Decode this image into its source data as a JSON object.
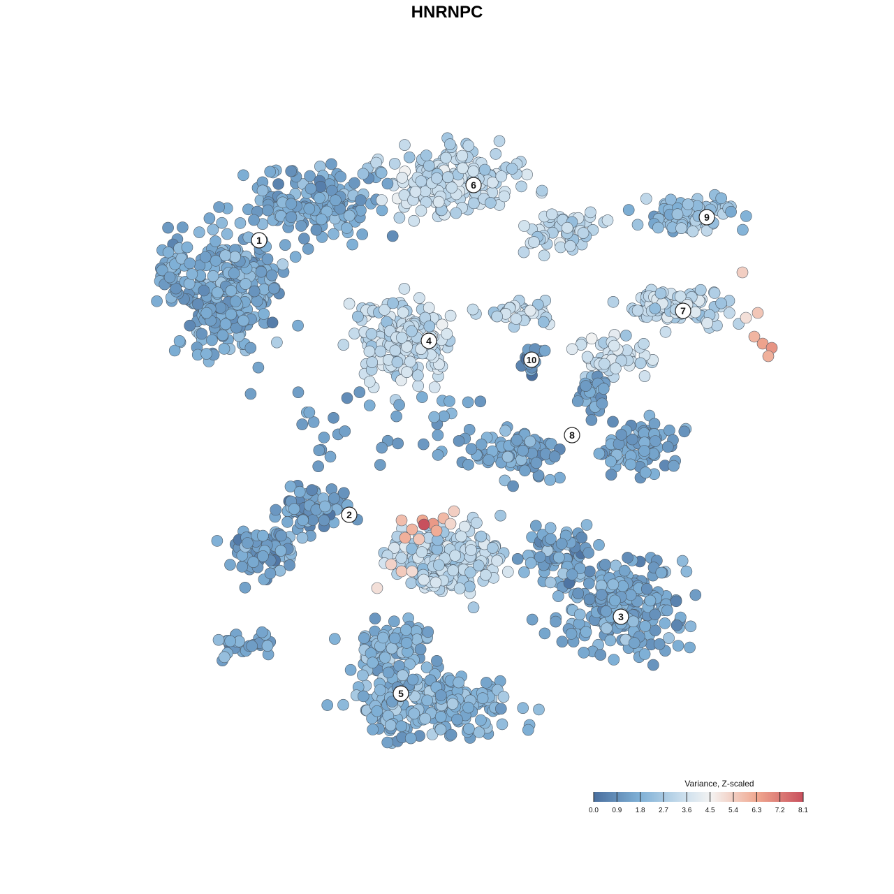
{
  "chart_data": {
    "type": "scatter",
    "title": "HNRNPC",
    "xlabel": "",
    "ylabel": "",
    "grid": false,
    "legend": {
      "title": "Variance, Z-scaled",
      "placement": "bottom-right",
      "ticks": [
        "0.0",
        "0.9",
        "1.8",
        "2.7",
        "3.6",
        "4.5",
        "5.4",
        "6.3",
        "7.2",
        "8.1"
      ],
      "range": [
        0,
        8.1
      ]
    },
    "colors": {
      "low": "#4a6f9e",
      "mid_low": "#7fb0d6",
      "mid": "#eef3f7",
      "mid_high": "#f4b89c",
      "high": "#c8505d"
    },
    "clusters": [
      {
        "label": "1",
        "value": 1.6
      },
      {
        "label": "2",
        "value": 1.4
      },
      {
        "label": "3",
        "value": 1.5
      },
      {
        "label": "4",
        "value": 3.4
      },
      {
        "label": "5",
        "value": 1.9
      },
      {
        "label": "6",
        "value": 3.2
      },
      {
        "label": "7",
        "value": 3.3
      },
      {
        "label": "8",
        "value": 1.4
      },
      {
        "label": "9",
        "value": 2.3
      },
      {
        "label": "10",
        "value": 0.9
      }
    ]
  }
}
